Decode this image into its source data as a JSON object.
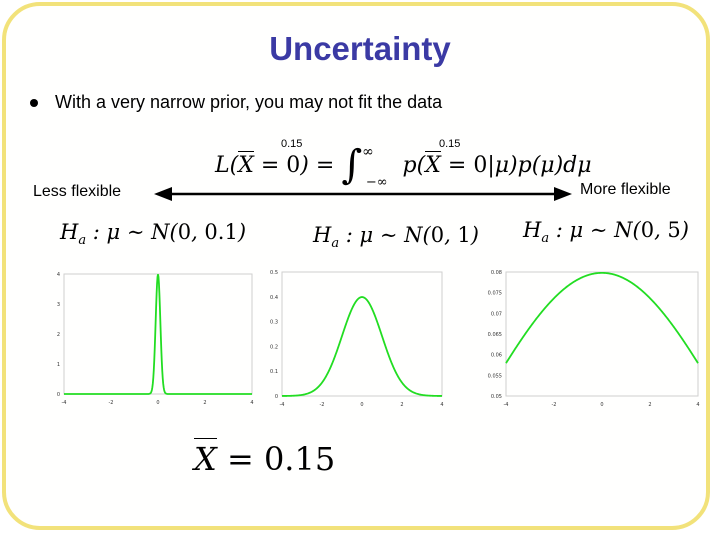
{
  "slide": {
    "title": "Uncertainty",
    "bullet": "With a very narrow prior, you may not fit the data",
    "equation_tag_left": "0.15",
    "equation_tag_right": "0.15",
    "less_flexible": "Less flexible",
    "more_flexible": "More flexible",
    "xbar_value": "0.15"
  },
  "colors": {
    "title": "#3b3aa4",
    "frame": "#f2e27a",
    "curve": "#22dd22"
  },
  "hypotheses": [
    {
      "label": "H_a : μ ~ N(0, 0.1)",
      "mean": 0,
      "sd_param": 0.1
    },
    {
      "label": "H_a : μ ~ N(0, 1)",
      "mean": 0,
      "sd_param": 1
    },
    {
      "label": "H_a : μ ~ N(0, 5)",
      "mean": 0,
      "sd_param": 5
    }
  ],
  "chart_data": [
    {
      "type": "line",
      "series": [
        {
          "name": "",
          "kind": "normal_pdf",
          "mu": 0,
          "sigma": 0.1
        }
      ],
      "xlim": [
        -4,
        4
      ],
      "ylim": [
        0,
        4
      ],
      "xticks": [
        -4,
        -2,
        0,
        2,
        4
      ],
      "yticks": [
        0,
        1,
        2,
        3,
        4
      ]
    },
    {
      "type": "line",
      "series": [
        {
          "name": "",
          "kind": "normal_pdf",
          "mu": 0,
          "sigma": 1
        }
      ],
      "xlim": [
        -4,
        4
      ],
      "ylim": [
        0,
        0.5
      ],
      "xticks": [
        -4,
        -2,
        0,
        2,
        4
      ],
      "yticks": [
        0,
        0.1,
        0.2,
        0.3,
        0.4,
        0.5
      ]
    },
    {
      "type": "line",
      "series": [
        {
          "name": "",
          "kind": "normal_pdf",
          "mu": 0,
          "sigma": 5
        }
      ],
      "xlim": [
        -4,
        4
      ],
      "ylim": [
        0.05,
        0.08
      ],
      "xticks": [
        -4,
        -2,
        0,
        2,
        4
      ],
      "yticks": [
        0.05,
        0.055,
        0.06,
        0.065,
        0.07,
        0.075,
        0.08
      ]
    }
  ]
}
